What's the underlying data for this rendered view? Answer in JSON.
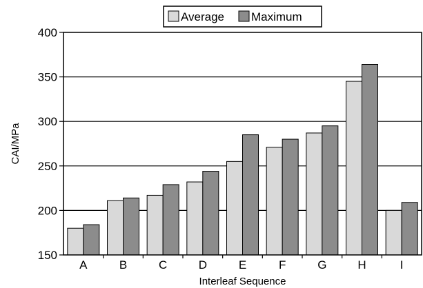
{
  "chart_data": {
    "type": "bar",
    "categories": [
      "A",
      "B",
      "C",
      "D",
      "E",
      "F",
      "G",
      "H",
      "I"
    ],
    "series": [
      {
        "name": "Average",
        "values": [
          180,
          211,
          217,
          232,
          255,
          271,
          287,
          345,
          200
        ]
      },
      {
        "name": "Maximum",
        "values": [
          184,
          214,
          229,
          244,
          285,
          280,
          295,
          364,
          209
        ]
      }
    ],
    "title": "",
    "xlabel": "Interleaf Sequence",
    "ylabel": "CAI/MPa",
    "ylim": [
      150,
      400
    ],
    "yticks": [
      "150",
      "200",
      "250",
      "300",
      "350",
      "400"
    ],
    "grid": true,
    "legend_position": "top-center",
    "colors": {
      "Average": "#d9d9d9",
      "Maximum": "#8c8c8c",
      "axis": "#000000"
    }
  }
}
